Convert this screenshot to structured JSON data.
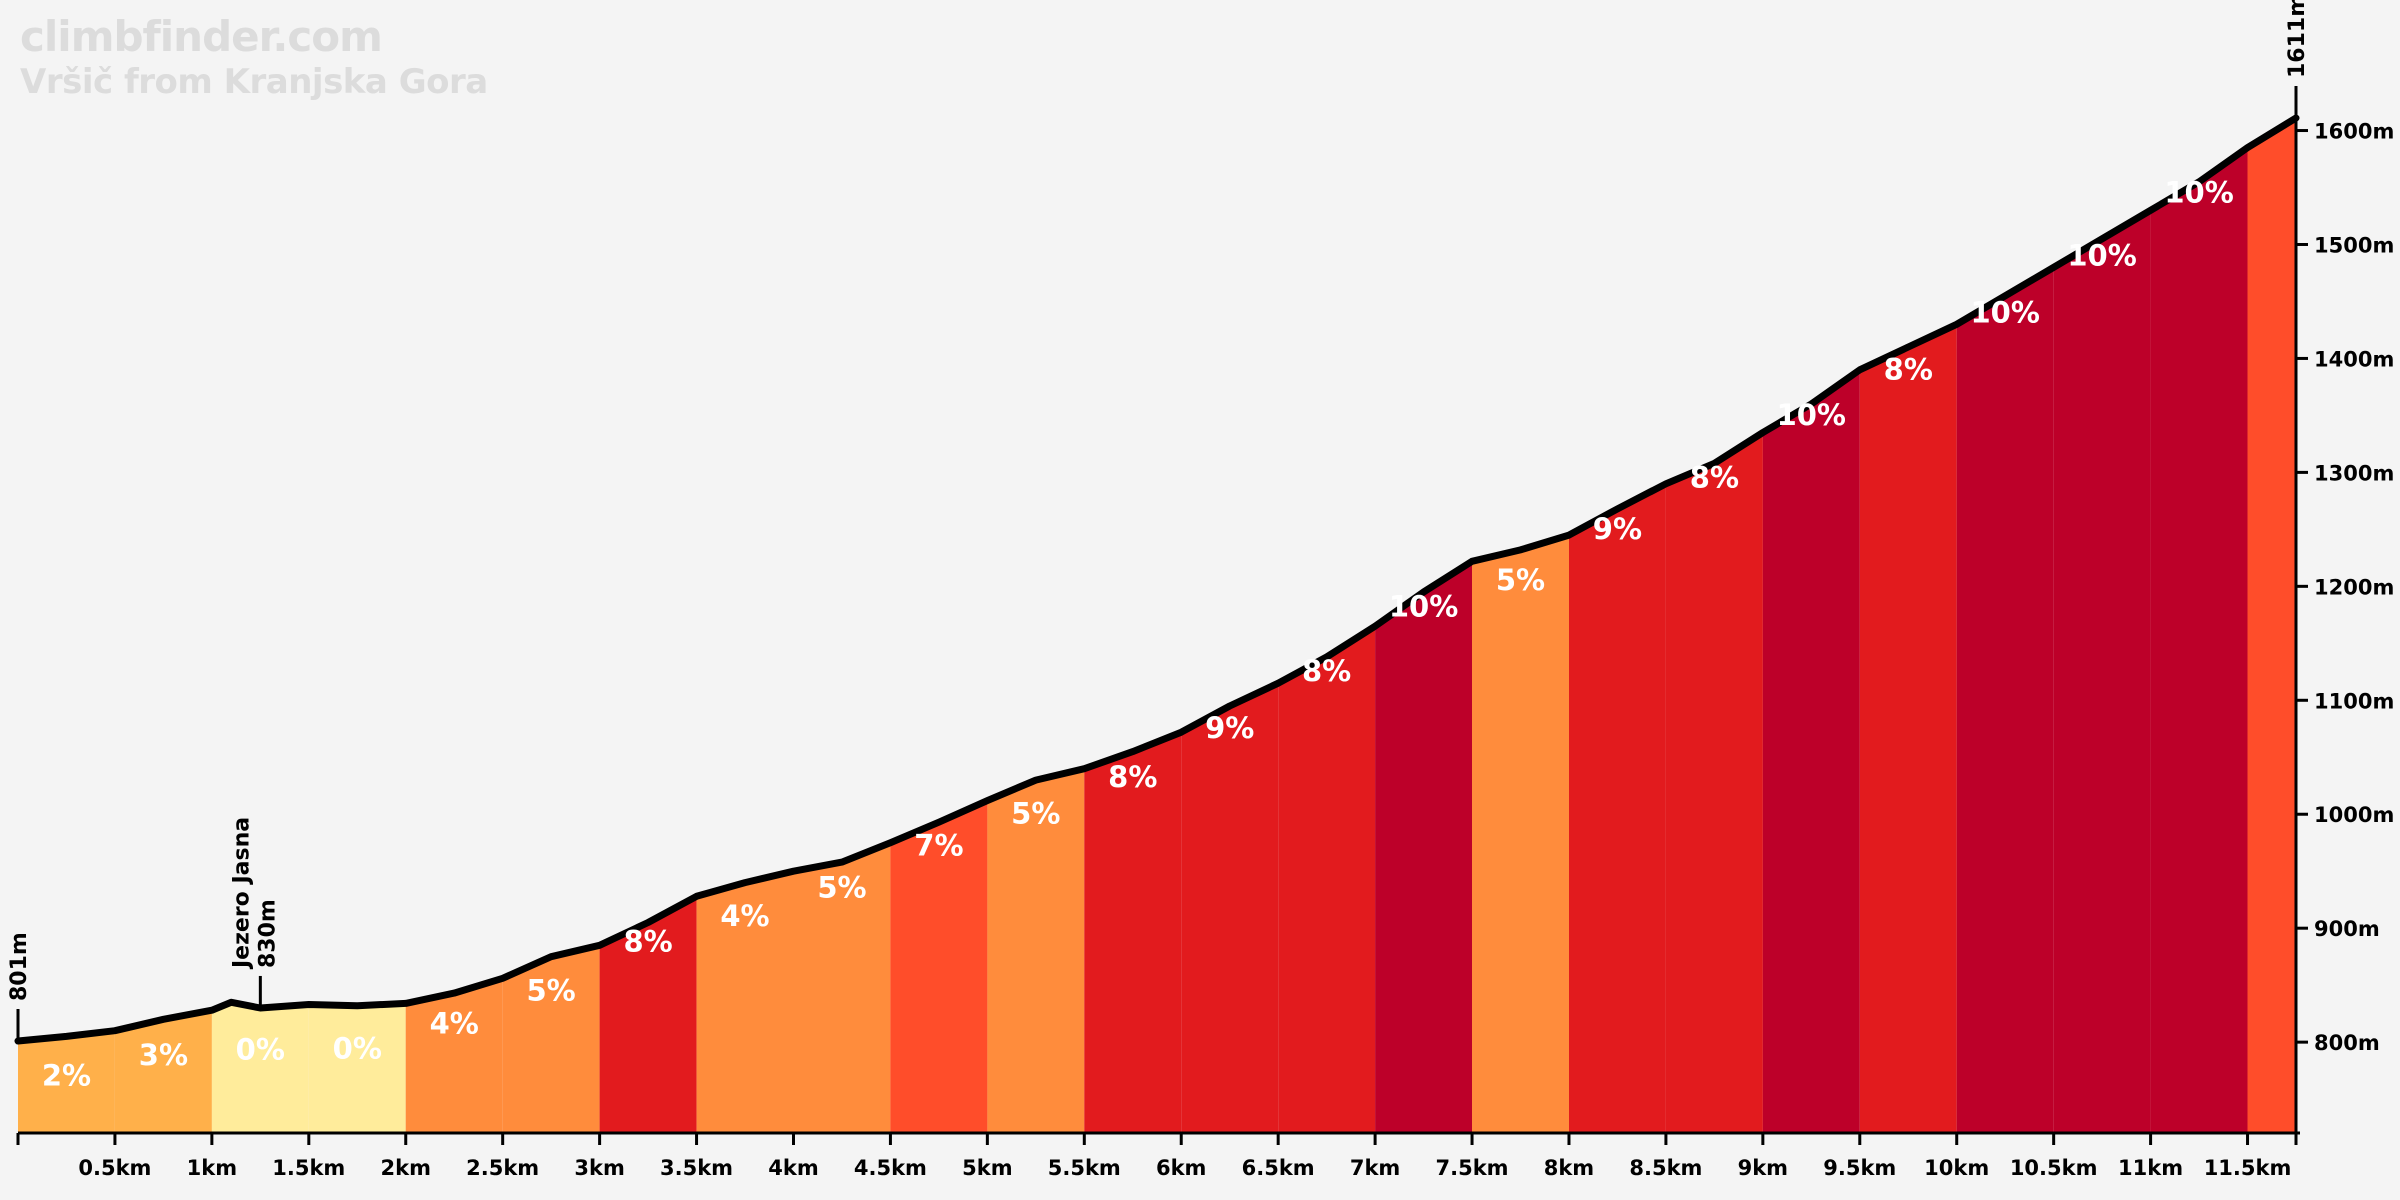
{
  "header": {
    "brand": "climbfinder.com",
    "subtitle": "Vršič from Kranjska Gora"
  },
  "chart_data": {
    "type": "area",
    "x_unit": "km",
    "y_unit": "m",
    "xlim": [
      0,
      11.75
    ],
    "ylim": [
      720,
      1640
    ],
    "x_ticks": [
      "0.5km",
      "1km",
      "1.5km",
      "2km",
      "2.5km",
      "3km",
      "3.5km",
      "4km",
      "4.5km",
      "5km",
      "5.5km",
      "6km",
      "6.5km",
      "7km",
      "7.5km",
      "8km",
      "8.5km",
      "9km",
      "9.5km",
      "10km",
      "10.5km",
      "11km",
      "11.5km"
    ],
    "x_tick_values": [
      0.5,
      1,
      1.5,
      2,
      2.5,
      3,
      3.5,
      4,
      4.5,
      5,
      5.5,
      6,
      6.5,
      7,
      7.5,
      8,
      8.5,
      9,
      9.5,
      10,
      10.5,
      11,
      11.5
    ],
    "y_ticks": [
      "800m",
      "900m",
      "1000m",
      "1100m",
      "1200m",
      "1300m",
      "1400m",
      "1500m",
      "1600m"
    ],
    "y_tick_values": [
      800,
      900,
      1000,
      1100,
      1200,
      1300,
      1400,
      1500,
      1600
    ],
    "segments": [
      {
        "start": 0,
        "end": 0.5,
        "label": "2%",
        "color": "#ffb04a"
      },
      {
        "start": 0.5,
        "end": 1.0,
        "label": "3%",
        "color": "#ffb04a"
      },
      {
        "start": 1.0,
        "end": 1.5,
        "label": "0%",
        "color": "#ffec9b"
      },
      {
        "start": 1.5,
        "end": 2.0,
        "label": "0%",
        "color": "#ffec9b"
      },
      {
        "start": 2.0,
        "end": 2.5,
        "label": "4%",
        "color": "#ff8c3c"
      },
      {
        "start": 2.5,
        "end": 3.0,
        "label": "5%",
        "color": "#ff8c3c"
      },
      {
        "start": 3.0,
        "end": 3.5,
        "label": "8%",
        "color": "#e21b1e"
      },
      {
        "start": 3.5,
        "end": 4.0,
        "label": "4%",
        "color": "#ff8c3c"
      },
      {
        "start": 4.0,
        "end": 4.5,
        "label": "5%",
        "color": "#ff8c3c"
      },
      {
        "start": 4.5,
        "end": 5.0,
        "label": "7%",
        "color": "#ff4d2a"
      },
      {
        "start": 5.0,
        "end": 5.5,
        "label": "5%",
        "color": "#ff8c3c"
      },
      {
        "start": 5.5,
        "end": 6.0,
        "label": "8%",
        "color": "#e21b1e"
      },
      {
        "start": 6.0,
        "end": 6.5,
        "label": "9%",
        "color": "#e21b1e"
      },
      {
        "start": 6.5,
        "end": 7.0,
        "label": "8%",
        "color": "#e21b1e"
      },
      {
        "start": 7.0,
        "end": 7.5,
        "label": "10%",
        "color": "#bd0029"
      },
      {
        "start": 7.5,
        "end": 8.0,
        "label": "5%",
        "color": "#ff8c3c"
      },
      {
        "start": 8.0,
        "end": 8.5,
        "label": "9%",
        "color": "#e21b1e"
      },
      {
        "start": 8.5,
        "end": 9.0,
        "label": "8%",
        "color": "#e21b1e"
      },
      {
        "start": 9.0,
        "end": 9.5,
        "label": "10%",
        "color": "#bd0029"
      },
      {
        "start": 9.5,
        "end": 10.0,
        "label": "8%",
        "color": "#e21b1e"
      },
      {
        "start": 10.0,
        "end": 10.5,
        "label": "10%",
        "color": "#bd0029"
      },
      {
        "start": 10.5,
        "end": 11.0,
        "label": "10%",
        "color": "#bd0029"
      },
      {
        "start": 11.0,
        "end": 11.5,
        "label": "10%",
        "color": "#bd0029"
      },
      {
        "start": 11.5,
        "end": 11.75,
        "label": "",
        "color": "#ff4d2a"
      }
    ],
    "profile": [
      [
        0,
        801
      ],
      [
        0.25,
        805
      ],
      [
        0.5,
        810
      ],
      [
        0.75,
        820
      ],
      [
        1.0,
        828
      ],
      [
        1.1,
        835
      ],
      [
        1.25,
        830
      ],
      [
        1.5,
        833
      ],
      [
        1.75,
        832
      ],
      [
        2.0,
        834
      ],
      [
        2.25,
        843
      ],
      [
        2.5,
        856
      ],
      [
        2.75,
        875
      ],
      [
        3.0,
        885
      ],
      [
        3.25,
        905
      ],
      [
        3.5,
        928
      ],
      [
        3.75,
        940
      ],
      [
        4.0,
        950
      ],
      [
        4.25,
        958
      ],
      [
        4.5,
        975
      ],
      [
        4.75,
        993
      ],
      [
        5.0,
        1012
      ],
      [
        5.25,
        1030
      ],
      [
        5.5,
        1040
      ],
      [
        5.75,
        1055
      ],
      [
        6.0,
        1072
      ],
      [
        6.25,
        1095
      ],
      [
        6.5,
        1115
      ],
      [
        6.75,
        1138
      ],
      [
        7.0,
        1165
      ],
      [
        7.25,
        1195
      ],
      [
        7.5,
        1222
      ],
      [
        7.75,
        1232
      ],
      [
        8.0,
        1245
      ],
      [
        8.25,
        1268
      ],
      [
        8.5,
        1290
      ],
      [
        8.75,
        1308
      ],
      [
        9.0,
        1335
      ],
      [
        9.25,
        1360
      ],
      [
        9.5,
        1390
      ],
      [
        9.75,
        1410
      ],
      [
        10.0,
        1430
      ],
      [
        10.25,
        1455
      ],
      [
        10.5,
        1480
      ],
      [
        10.75,
        1505
      ],
      [
        11.0,
        1530
      ],
      [
        11.25,
        1555
      ],
      [
        11.5,
        1585
      ],
      [
        11.75,
        1611
      ]
    ],
    "annotations": [
      {
        "x": 0,
        "elevation": 801,
        "lines": [
          "801m"
        ]
      },
      {
        "x": 1.25,
        "elevation": 830,
        "lines": [
          "Jezero Jasna",
          "830m"
        ]
      },
      {
        "x": 11.75,
        "elevation": 1611,
        "lines": [
          "1611m"
        ]
      }
    ]
  }
}
